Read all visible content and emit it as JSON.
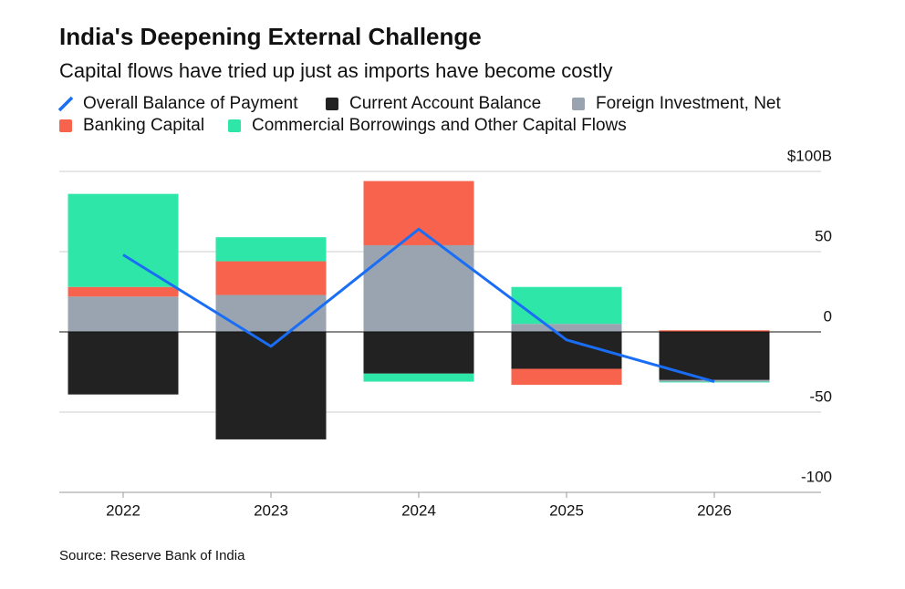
{
  "chart_data": {
    "type": "bar",
    "stacked": true,
    "title": "India's Deepening External Challenge",
    "subtitle": "Capital flows have tried up just as imports have become costly",
    "source": "Source: Reserve Bank of India",
    "categories": [
      "2022",
      "2023",
      "2024",
      "2025",
      "2026"
    ],
    "series": [
      {
        "name": "Overall Balance of Payment",
        "type": "line",
        "color": "#1a6ef5",
        "values": [
          48,
          -9,
          64,
          -5,
          -31
        ]
      },
      {
        "name": "Current Account Balance",
        "color": "#222222",
        "values": [
          -39,
          -67,
          -26,
          -23,
          -30
        ]
      },
      {
        "name": "Foreign Investment, Net",
        "color": "#9aa4b1",
        "values": [
          22,
          23,
          54,
          5,
          -1
        ]
      },
      {
        "name": "Banking Capital",
        "color": "#f7634d",
        "values": [
          6,
          21,
          40,
          -10,
          1
        ]
      },
      {
        "name": "Commercial Borrowings and Other Capital Flows",
        "color": "#2ee6a8",
        "values": [
          58,
          15,
          -5,
          23,
          -0.5
        ]
      }
    ],
    "ylim": [
      -100,
      100
    ],
    "yticks": [
      {
        "value": 100,
        "label": "$100B"
      },
      50,
      0,
      -50,
      -100
    ],
    "grid": true
  }
}
